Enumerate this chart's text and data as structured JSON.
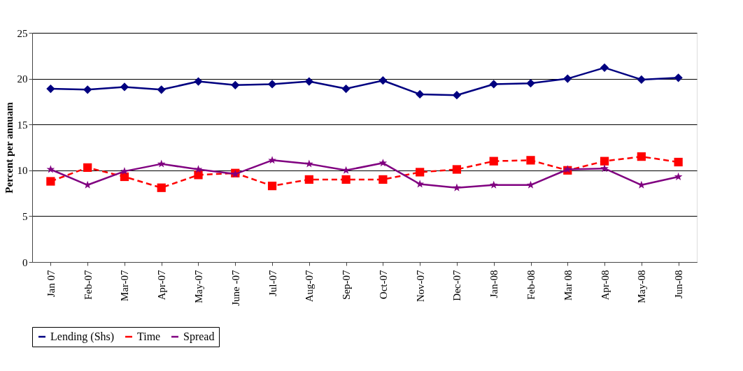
{
  "chart_data": {
    "type": "line",
    "ylabel": "Percent per annuam",
    "categories": [
      "Jan 07",
      "Feb-07",
      "Mar-07",
      "Apr-07",
      "May-07",
      "June -07",
      "Jul-07",
      "Aug-07",
      "Sep-07",
      "Oct-07",
      "Nov-07",
      "Dec-07",
      "Jan-08",
      "Feb-08",
      "Mar 08",
      "Apr-08",
      "May-08",
      "Jun-08"
    ],
    "series": [
      {
        "name": "Lending (Shs)",
        "color": "#000080",
        "marker": "diamond",
        "line_style": "solid",
        "values": [
          18.9,
          18.8,
          19.1,
          18.8,
          19.7,
          19.3,
          19.4,
          19.7,
          18.9,
          19.8,
          18.3,
          18.2,
          19.4,
          19.5,
          20.0,
          21.2,
          19.9,
          20.1
        ]
      },
      {
        "name": "Time",
        "color": "#ff0000",
        "marker": "square",
        "line_style": "dashed",
        "values": [
          8.8,
          10.3,
          9.3,
          8.1,
          9.5,
          9.7,
          8.3,
          9.0,
          9.0,
          9.0,
          9.8,
          10.1,
          11.0,
          11.1,
          10.0,
          11.0,
          11.5,
          10.9
        ]
      },
      {
        "name": "Spread",
        "color": "#800080",
        "marker": "star",
        "line_style": "solid",
        "values": [
          10.1,
          8.4,
          9.9,
          10.7,
          10.1,
          9.6,
          11.1,
          10.7,
          10.0,
          10.8,
          8.5,
          8.1,
          8.4,
          8.4,
          10.1,
          10.2,
          8.4,
          9.3
        ]
      }
    ],
    "ylim": [
      0,
      25
    ],
    "yticks": [
      0,
      5,
      10,
      15,
      20,
      25
    ],
    "grid": "y",
    "legend": "bottom"
  }
}
